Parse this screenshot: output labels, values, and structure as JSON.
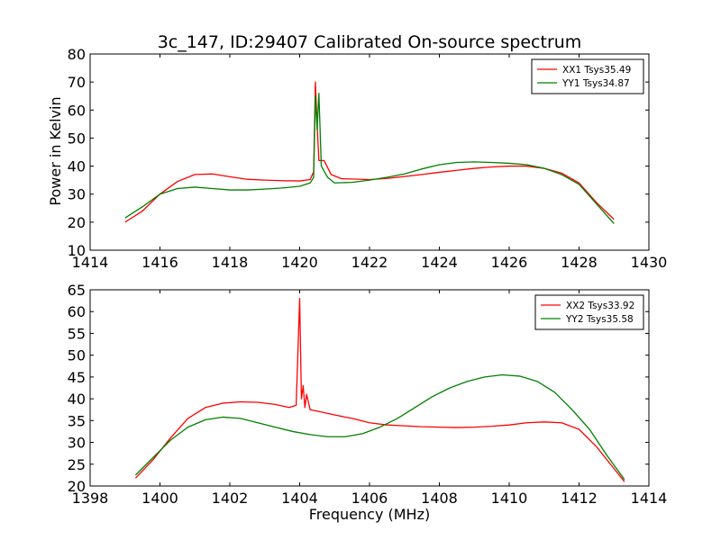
{
  "figure": {
    "title": "3c_147, ID:29407 Calibrated On-source spectrum",
    "ylabel": "Power in Kelvin",
    "xlabel": "Frequency (MHz)"
  },
  "colors": {
    "xx": "#ff0000",
    "yy": "#008000"
  },
  "chart_data": [
    {
      "type": "line",
      "title": "3c_147, ID:29407 Calibrated On-source spectrum",
      "xlabel": "",
      "ylabel": "Power in Kelvin",
      "xlim": [
        1414,
        1430
      ],
      "ylim": [
        10,
        80
      ],
      "xticks": [
        1414,
        1416,
        1418,
        1420,
        1422,
        1424,
        1426,
        1428,
        1430
      ],
      "yticks": [
        10,
        20,
        30,
        40,
        50,
        60,
        70,
        80
      ],
      "legend_position": "top-right",
      "grid": false,
      "series": [
        {
          "name": "XX1 Tsys35.49",
          "color": "#ff0000",
          "points": [
            [
              1415.0,
              20.0
            ],
            [
              1415.5,
              24.0
            ],
            [
              1416.0,
              30.0
            ],
            [
              1416.5,
              34.5
            ],
            [
              1417.0,
              37.0
            ],
            [
              1417.5,
              37.2
            ],
            [
              1418.0,
              36.2
            ],
            [
              1418.5,
              35.3
            ],
            [
              1419.0,
              35.0
            ],
            [
              1419.5,
              34.8
            ],
            [
              1420.0,
              34.7
            ],
            [
              1420.3,
              35.2
            ],
            [
              1420.4,
              38.0
            ],
            [
              1420.45,
              70.0
            ],
            [
              1420.5,
              55.0
            ],
            [
              1420.55,
              42.0
            ],
            [
              1420.7,
              42.0
            ],
            [
              1420.9,
              37.0
            ],
            [
              1421.2,
              35.5
            ],
            [
              1422.0,
              35.2
            ],
            [
              1422.5,
              35.6
            ],
            [
              1423.0,
              36.3
            ],
            [
              1423.5,
              37.0
            ],
            [
              1424.0,
              37.8
            ],
            [
              1424.5,
              38.5
            ],
            [
              1425.0,
              39.2
            ],
            [
              1425.5,
              39.7
            ],
            [
              1426.0,
              40.0
            ],
            [
              1426.5,
              40.0
            ],
            [
              1427.0,
              39.2
            ],
            [
              1427.5,
              37.5
            ],
            [
              1428.0,
              34.0
            ],
            [
              1428.5,
              27.0
            ],
            [
              1429.0,
              21.0
            ]
          ]
        },
        {
          "name": "YY1 Tsys34.87",
          "color": "#008000",
          "points": [
            [
              1415.0,
              21.5
            ],
            [
              1415.5,
              25.5
            ],
            [
              1416.0,
              30.0
            ],
            [
              1416.5,
              32.0
            ],
            [
              1417.0,
              32.5
            ],
            [
              1417.5,
              32.0
            ],
            [
              1418.0,
              31.5
            ],
            [
              1418.5,
              31.5
            ],
            [
              1419.0,
              31.8
            ],
            [
              1419.5,
              32.2
            ],
            [
              1420.0,
              32.8
            ],
            [
              1420.3,
              34.0
            ],
            [
              1420.4,
              36.0
            ],
            [
              1420.45,
              65.0
            ],
            [
              1420.5,
              53.0
            ],
            [
              1420.55,
              66.0
            ],
            [
              1420.62,
              40.0
            ],
            [
              1420.8,
              36.0
            ],
            [
              1421.0,
              34.0
            ],
            [
              1421.5,
              34.2
            ],
            [
              1422.0,
              35.0
            ],
            [
              1422.5,
              36.0
            ],
            [
              1423.0,
              37.2
            ],
            [
              1423.5,
              39.0
            ],
            [
              1424.0,
              40.5
            ],
            [
              1424.5,
              41.3
            ],
            [
              1425.0,
              41.5
            ],
            [
              1425.5,
              41.3
            ],
            [
              1426.0,
              41.0
            ],
            [
              1426.5,
              40.5
            ],
            [
              1427.0,
              39.2
            ],
            [
              1427.5,
              37.0
            ],
            [
              1428.0,
              33.5
            ],
            [
              1428.5,
              26.5
            ],
            [
              1429.0,
              19.5
            ]
          ]
        }
      ]
    },
    {
      "type": "line",
      "title": "",
      "xlabel": "Frequency (MHz)",
      "ylabel": "",
      "xlim": [
        1398,
        1414
      ],
      "ylim": [
        20,
        65
      ],
      "xticks": [
        1398,
        1400,
        1402,
        1404,
        1406,
        1408,
        1410,
        1412,
        1414
      ],
      "yticks": [
        20,
        25,
        30,
        35,
        40,
        45,
        50,
        55,
        60,
        65
      ],
      "legend_position": "top-right",
      "grid": false,
      "series": [
        {
          "name": "XX2 Tsys33.92",
          "color": "#ff0000",
          "points": [
            [
              1399.3,
              21.8
            ],
            [
              1399.8,
              26.0
            ],
            [
              1400.3,
              31.0
            ],
            [
              1400.8,
              35.5
            ],
            [
              1401.3,
              38.0
            ],
            [
              1401.8,
              39.0
            ],
            [
              1402.3,
              39.3
            ],
            [
              1402.8,
              39.2
            ],
            [
              1403.3,
              38.7
            ],
            [
              1403.7,
              38.0
            ],
            [
              1403.9,
              38.5
            ],
            [
              1404.0,
              63.0
            ],
            [
              1404.05,
              40.0
            ],
            [
              1404.1,
              43.0
            ],
            [
              1404.15,
              38.0
            ],
            [
              1404.2,
              41.0
            ],
            [
              1404.3,
              37.5
            ],
            [
              1404.6,
              37.0
            ],
            [
              1405.0,
              36.3
            ],
            [
              1405.5,
              35.5
            ],
            [
              1406.0,
              34.5
            ],
            [
              1406.5,
              34.0
            ],
            [
              1407.0,
              33.8
            ],
            [
              1407.5,
              33.6
            ],
            [
              1408.0,
              33.5
            ],
            [
              1408.5,
              33.4
            ],
            [
              1409.0,
              33.5
            ],
            [
              1409.5,
              33.7
            ],
            [
              1410.0,
              34.0
            ],
            [
              1410.5,
              34.5
            ],
            [
              1411.0,
              34.7
            ],
            [
              1411.5,
              34.5
            ],
            [
              1412.0,
              33.0
            ],
            [
              1412.5,
              29.0
            ],
            [
              1413.0,
              24.0
            ],
            [
              1413.3,
              21.0
            ]
          ]
        },
        {
          "name": "YY2 Tsys35.58",
          "color": "#008000",
          "points": [
            [
              1399.3,
              22.5
            ],
            [
              1399.8,
              26.5
            ],
            [
              1400.3,
              30.5
            ],
            [
              1400.8,
              33.5
            ],
            [
              1401.3,
              35.2
            ],
            [
              1401.8,
              35.8
            ],
            [
              1402.3,
              35.5
            ],
            [
              1402.8,
              34.5
            ],
            [
              1403.3,
              33.5
            ],
            [
              1403.8,
              32.5
            ],
            [
              1404.3,
              31.8
            ],
            [
              1404.8,
              31.3
            ],
            [
              1405.3,
              31.3
            ],
            [
              1405.8,
              32.0
            ],
            [
              1406.3,
              33.5
            ],
            [
              1406.8,
              35.5
            ],
            [
              1407.3,
              38.0
            ],
            [
              1407.8,
              40.5
            ],
            [
              1408.3,
              42.5
            ],
            [
              1408.8,
              44.0
            ],
            [
              1409.3,
              45.0
            ],
            [
              1409.8,
              45.5
            ],
            [
              1410.3,
              45.2
            ],
            [
              1410.8,
              44.0
            ],
            [
              1411.3,
              41.5
            ],
            [
              1411.8,
              37.5
            ],
            [
              1412.3,
              33.0
            ],
            [
              1412.8,
              27.0
            ],
            [
              1413.3,
              21.5
            ]
          ]
        }
      ]
    }
  ]
}
